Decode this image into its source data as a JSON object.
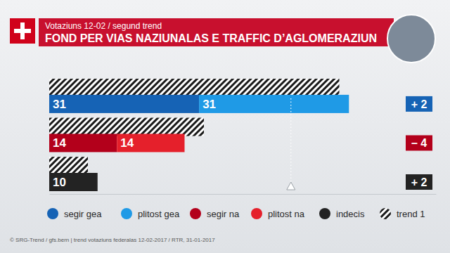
{
  "chart_data": {
    "type": "bar",
    "orientation": "horizontal",
    "stacked": true,
    "data_labels": true,
    "tick_labels": false,
    "title": "Votaziuns 12-02 / segund trend",
    "subtitle": "FOND PER VIAS NAZIUNALAS E TRAFFIC D’AGLOMERAZIUN",
    "source": "© SRG-Trend / gfs.bern  |  trend votaziuns federalas 12-02-2017 / RTR, 31-01-2017",
    "categories": [
      null,
      null,
      null
    ],
    "xlim": [
      0,
      80
    ],
    "reference_line": 50,
    "series": [
      {
        "name": "segir gea",
        "color": "#1663b5",
        "values": [
          31,
          null,
          null
        ]
      },
      {
        "name": "plitost gea",
        "color": "#1f9ae6",
        "values": [
          31,
          null,
          null
        ]
      },
      {
        "name": "segir na",
        "color": "#b3001b",
        "values": [
          null,
          14,
          null
        ]
      },
      {
        "name": "plitost na",
        "color": "#e5202b",
        "values": [
          null,
          14,
          null
        ]
      },
      {
        "name": "indecis",
        "color": "#232323",
        "values": [
          null,
          null,
          10
        ]
      },
      {
        "name": "trend 1",
        "type": "overlay",
        "color": "#1a1a1a",
        "values": [
          60,
          32,
          8
        ]
      }
    ],
    "change": {
      "values": [
        2,
        -4,
        2
      ],
      "value_labels": [
        "+ 2",
        "– 4",
        "+ 2"
      ],
      "colors": [
        "#1663b5",
        "#b3001b",
        "#232323"
      ]
    }
  }
}
